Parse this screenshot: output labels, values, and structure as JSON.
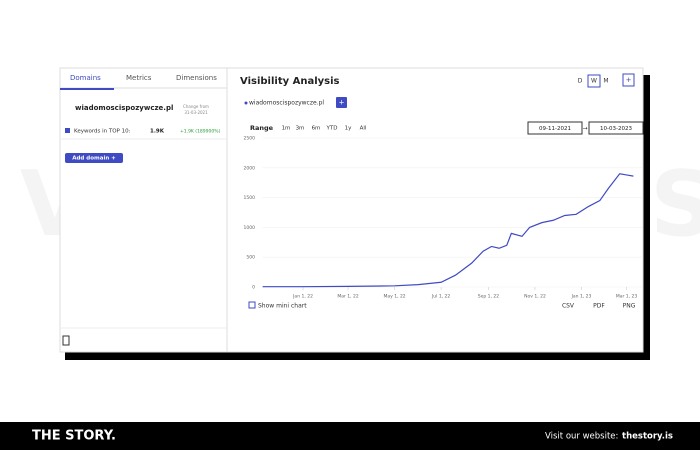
{
  "sidebar": {
    "tabs": [
      "Domains",
      "Metrics",
      "Dimensions"
    ],
    "domain": "wiadomoscispozywcze.pl",
    "change_label": "Change from",
    "change_date": "31-03-2021",
    "metric_label": "Keywords in TOP 10:",
    "metric_value": "1.9K",
    "metric_change": "+1.9K (189900%)",
    "add_button": "Add domain +"
  },
  "panel": {
    "title": "Visibility Analysis",
    "granularity": [
      "D",
      "W",
      "M"
    ],
    "add": "+",
    "legend_add": "+",
    "range_label": "Range",
    "ranges": [
      "1m",
      "3m",
      "6m",
      "YTD",
      "1y",
      "All"
    ],
    "date_from": "09-11-2021",
    "arrow": "→",
    "date_to": "10-03-2023",
    "mini_chart": "Show mini chart",
    "exports": [
      "CSV",
      "PDF",
      "PNG"
    ]
  },
  "chart_data": {
    "type": "line",
    "x": [
      "2021-11-09",
      "2022-01-01",
      "2022-03-01",
      "2022-05-01",
      "2022-06-01",
      "2022-07-01",
      "2022-07-20",
      "2022-08-10",
      "2022-08-25",
      "2022-09-05",
      "2022-09-15",
      "2022-09-25",
      "2022-10-01",
      "2022-10-15",
      "2022-10-25",
      "2022-11-10",
      "2022-11-25",
      "2022-12-10",
      "2022-12-25",
      "2023-01-10",
      "2023-01-25",
      "2023-02-05",
      "2023-02-20",
      "2023-03-01",
      "2023-03-10"
    ],
    "series": [
      {
        "name": "wiadomoscispozywcze.pl",
        "color": "#3f4bc2",
        "values": [
          5,
          5,
          10,
          20,
          40,
          80,
          200,
          400,
          600,
          680,
          650,
          700,
          900,
          850,
          1000,
          1080,
          1120,
          1200,
          1220,
          1350,
          1450,
          1650,
          1900,
          1880,
          1860
        ]
      }
    ],
    "xlim": [
      "2021-11-09",
      "2023-03-10"
    ],
    "xticks": [
      {
        "value": "2022-01-01",
        "label": "Jan 1, 22"
      },
      {
        "value": "2022-03-01",
        "label": "Mar 1, 22"
      },
      {
        "value": "2022-05-01",
        "label": "May 1, 22"
      },
      {
        "value": "2022-07-01",
        "label": "Jul 1, 22"
      },
      {
        "value": "2022-09-01",
        "label": "Sep 1, 22"
      },
      {
        "value": "2022-11-01",
        "label": "Nov 1, 22"
      },
      {
        "value": "2023-01-01",
        "label": "Jan 1, 23"
      },
      {
        "value": "2023-03-01",
        "label": "Mar 1, 23"
      }
    ],
    "ylim": [
      0,
      2500
    ],
    "yticks": [
      0,
      500,
      1000,
      1500,
      2000,
      2500
    ],
    "grid": true
  },
  "footer": {
    "brand": "THE STORY.",
    "visit": "Visit our website:",
    "site": "thestory.is"
  }
}
